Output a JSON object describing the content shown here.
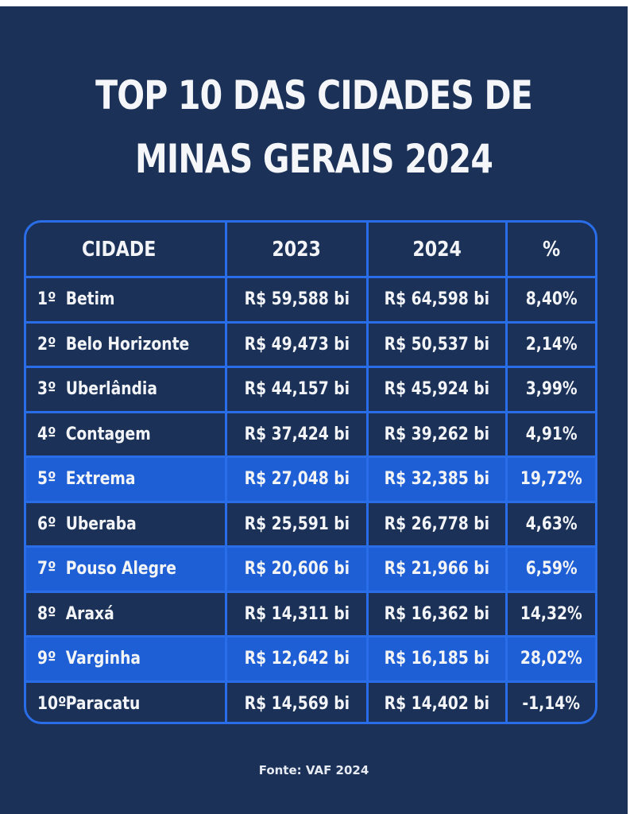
{
  "title_lines": [
    "TOP 10 DAS CIDADES DE",
    "MINAS GERAIS 2024"
  ],
  "table": {
    "headers": [
      "CIDADE",
      "2023",
      "2024",
      "%"
    ],
    "rows": [
      {
        "rank": "1º",
        "city": "Betim",
        "v2023": "R$ 59,588 bi",
        "v2024": "R$ 64,598 bi",
        "pct": "8,40%",
        "highlight": false
      },
      {
        "rank": "2º",
        "city": "Belo Horizonte",
        "v2023": "R$ 49,473 bi",
        "v2024": "R$ 50,537 bi",
        "pct": "2,14%",
        "highlight": false
      },
      {
        "rank": "3º",
        "city": "Uberlândia",
        "v2023": "R$ 44,157 bi",
        "v2024": "R$ 45,924 bi",
        "pct": "3,99%",
        "highlight": false
      },
      {
        "rank": "4º",
        "city": "Contagem",
        "v2023": "R$ 37,424 bi",
        "v2024": "R$ 39,262 bi",
        "pct": "4,91%",
        "highlight": false
      },
      {
        "rank": "5º",
        "city": "Extrema",
        "v2023": "R$ 27,048 bi",
        "v2024": "R$ 32,385 bi",
        "pct": "19,72%",
        "highlight": true
      },
      {
        "rank": "6º",
        "city": "Uberaba",
        "v2023": "R$ 25,591 bi",
        "v2024": "R$ 26,778 bi",
        "pct": "4,63%",
        "highlight": false
      },
      {
        "rank": "7º",
        "city": "Pouso Alegre",
        "v2023": "R$ 20,606 bi",
        "v2024": "R$ 21,966 bi",
        "pct": "6,59%",
        "highlight": true
      },
      {
        "rank": "8º",
        "city": "Araxá",
        "v2023": "R$ 14,311 bi",
        "v2024": "R$ 16,362 bi",
        "pct": "14,32%",
        "highlight": false
      },
      {
        "rank": "9º",
        "city": "Varginha",
        "v2023": "R$ 12,642 bi",
        "v2024": "R$ 16,185 bi",
        "pct": "28,02%",
        "highlight": true
      },
      {
        "rank": "10º",
        "city": "Paracatu",
        "v2023": "R$ 14,569 bi",
        "v2024": "R$ 14,402 bi",
        "pct": "-1,14%",
        "highlight": false
      }
    ]
  },
  "source": "Fonte: VAF 2024",
  "colors": {
    "background": "#1b3157",
    "highlight": "#1f5fd6",
    "border": "#2a6de8"
  }
}
